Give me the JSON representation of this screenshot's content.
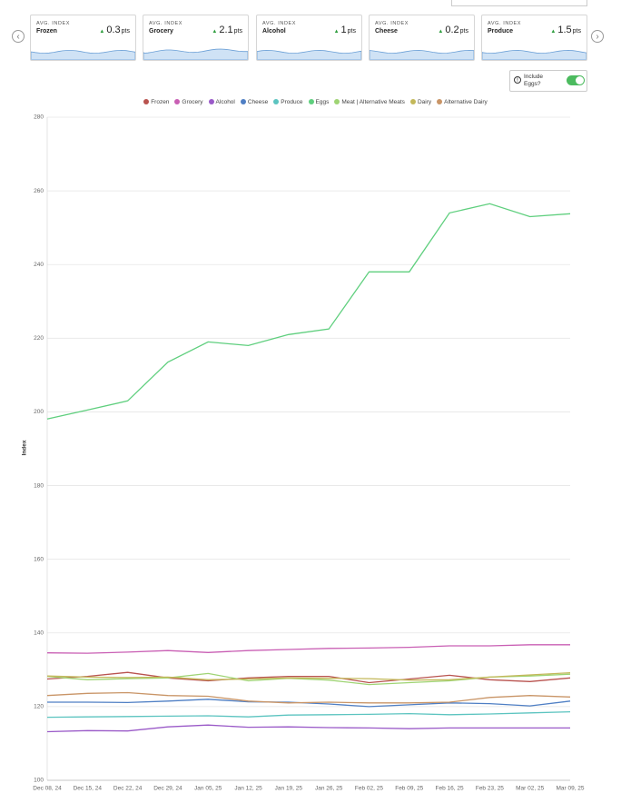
{
  "cards": [
    {
      "label": "AVG. INDEX",
      "name": "Frozen",
      "value": 0.3,
      "unit": "pts"
    },
    {
      "label": "AVG. INDEX",
      "name": "Grocery",
      "value": 2.1,
      "unit": "pts"
    },
    {
      "label": "AVG. INDEX",
      "name": "Alcohol",
      "value": 1,
      "unit": "pts"
    },
    {
      "label": "AVG. INDEX",
      "name": "Cheese",
      "value": 0.2,
      "unit": "pts"
    },
    {
      "label": "AVG. INDEX",
      "name": "Produce",
      "value": 1.5,
      "unit": "pts"
    }
  ],
  "toggle": {
    "label": "Include Eggs?",
    "on": true
  },
  "chart_data": {
    "type": "line",
    "ylabel": "Index",
    "categories": [
      "Dec 08, 24",
      "Dec 15, 24",
      "Dec 22, 24",
      "Dec 29, 24",
      "Jan 05, 25",
      "Jan 12, 25",
      "Jan 19, 25",
      "Jan 26, 25",
      "Feb 02, 25",
      "Feb 09, 25",
      "Feb 16, 25",
      "Feb 23, 25",
      "Mar 02, 25",
      "Mar 09, 25"
    ],
    "ylim": [
      100,
      280
    ],
    "yticks": [
      100,
      120,
      140,
      160,
      180,
      200,
      220,
      240,
      260,
      280
    ],
    "grid": true,
    "series": [
      {
        "name": "Frozen",
        "color": "#b9534f",
        "values": [
          127.5,
          128.2,
          129.3,
          127.8,
          127,
          127.8,
          128.2,
          128.2,
          126.5,
          127.5,
          128.5,
          127.3,
          126.8,
          127.8
        ]
      },
      {
        "name": "Grocery",
        "color": "#c95fb4",
        "values": [
          134.6,
          134.5,
          134.8,
          135.2,
          134.7,
          135.2,
          135.5,
          135.8,
          135.9,
          136.1,
          136.5,
          136.5,
          136.8,
          136.8
        ]
      },
      {
        "name": "Alcohol",
        "color": "#9a5ac8",
        "values": [
          113.2,
          113.5,
          113.4,
          114.5,
          115,
          114.4,
          114.5,
          114.3,
          114.2,
          114,
          114.2,
          114.2,
          114.2,
          114.2
        ]
      },
      {
        "name": "Cheese",
        "color": "#4f7fc4",
        "values": [
          121.2,
          121.2,
          121.1,
          121.5,
          122,
          121.3,
          121.2,
          120.7,
          120,
          120.5,
          121,
          120.8,
          120.2,
          121.5
        ]
      },
      {
        "name": "Produce",
        "color": "#5cc4c0",
        "values": [
          117.1,
          117.2,
          117.3,
          117.4,
          117.5,
          117.2,
          117.7,
          117.8,
          117.9,
          118.1,
          117.8,
          118,
          118.3,
          118.6
        ]
      },
      {
        "name": "Eggs",
        "color": "#5fcf7e",
        "values": [
          198.1,
          200.5,
          203,
          213.5,
          219,
          218,
          221,
          222.5,
          238,
          238,
          254,
          256.5,
          253,
          253.8
        ]
      },
      {
        "name": "Meat | Alternative Meats",
        "color": "#9fd474",
        "values": [
          128.2,
          127.3,
          127.6,
          127.8,
          129,
          127,
          127.7,
          127.2,
          126,
          126.5,
          127,
          128,
          128.3,
          128.8
        ]
      },
      {
        "name": "Dairy",
        "color": "#c3b85a",
        "values": [
          128.3,
          128,
          127.9,
          128,
          127.3,
          127.5,
          127.8,
          127.7,
          127.6,
          127.2,
          127.3,
          128,
          128.6,
          129.2
        ]
      },
      {
        "name": "Alternative Dairy",
        "color": "#c99567",
        "values": [
          123,
          123.6,
          123.8,
          123,
          122.8,
          121.5,
          121,
          121.2,
          121,
          121,
          121.2,
          122.5,
          123,
          122.6
        ]
      }
    ]
  }
}
